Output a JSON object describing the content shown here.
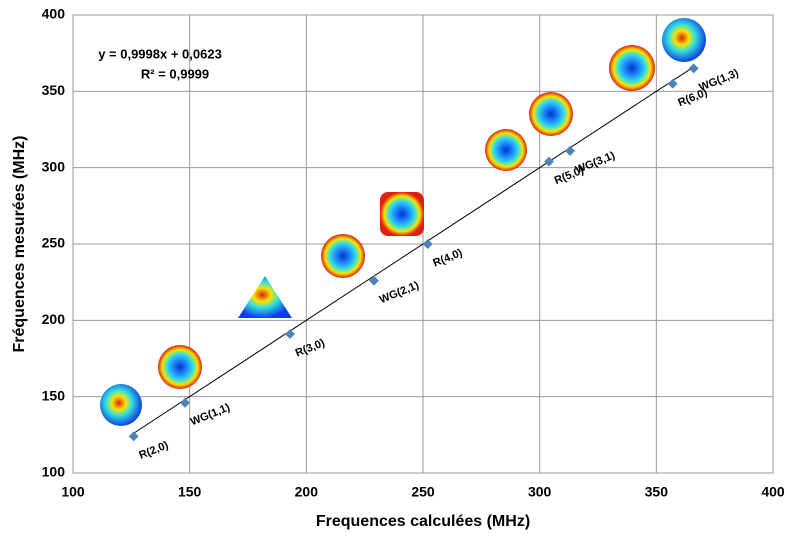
{
  "chart_data": {
    "type": "scatter",
    "x_label": "Frequences calculées (MHz)",
    "y_label": "Fréquences mesurées (MHz)",
    "x": [
      126,
      148,
      193,
      229,
      252,
      304,
      313,
      357,
      366
    ],
    "values": [
      124,
      146,
      191,
      226,
      250,
      304,
      311,
      355,
      365
    ],
    "labels": [
      "R(2,0)",
      "WG(1,1)",
      "R(3,0)",
      "WG(2,1)",
      "R(4,0)",
      "R(5,0)",
      "WG(3,1)",
      "R(6,0)",
      "WG(1,3)"
    ],
    "color": "#4f81bd",
    "xlim": [
      100,
      400
    ],
    "xticks": [
      100,
      150,
      200,
      250,
      300,
      350,
      400
    ],
    "ylim": [
      100,
      400
    ],
    "yticks": [
      100,
      150,
      200,
      250,
      300,
      350,
      400
    ],
    "grid": true,
    "trendline": {
      "slope": 0.9998,
      "intercept": 0.0623,
      "label": "y = 0,9998x + 0,0623",
      "r2_label": "R² = 0,9999",
      "color": "#000000"
    }
  }
}
